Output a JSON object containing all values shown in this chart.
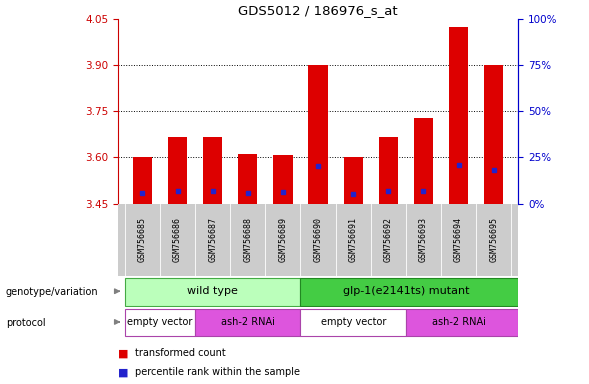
{
  "title": "GDS5012 / 186976_s_at",
  "samples": [
    "GSM756685",
    "GSM756686",
    "GSM756687",
    "GSM756688",
    "GSM756689",
    "GSM756690",
    "GSM756691",
    "GSM756692",
    "GSM756693",
    "GSM756694",
    "GSM756695"
  ],
  "red_values": [
    3.601,
    3.665,
    3.668,
    3.612,
    3.609,
    3.901,
    3.603,
    3.666,
    3.728,
    4.025,
    3.902
  ],
  "blue_values": [
    3.485,
    3.49,
    3.49,
    3.483,
    3.487,
    3.572,
    3.481,
    3.49,
    3.491,
    3.576,
    3.56
  ],
  "ymin": 3.45,
  "ymax": 4.05,
  "yticks": [
    3.45,
    3.6,
    3.75,
    3.9,
    4.05
  ],
  "right_yticks": [
    0,
    25,
    50,
    75,
    100
  ],
  "grid_lines": [
    3.6,
    3.75,
    3.9
  ],
  "bar_color": "#dd0000",
  "blue_color": "#2222cc",
  "bar_width": 0.55,
  "base_value": 3.45,
  "left_color": "#cc0000",
  "right_color": "#0000cc",
  "geno_light_green": "#bbffbb",
  "geno_dark_green": "#44cc44",
  "proto_white": "#ffffff",
  "proto_purple": "#dd55dd",
  "tick_label_bg": "#cccccc"
}
